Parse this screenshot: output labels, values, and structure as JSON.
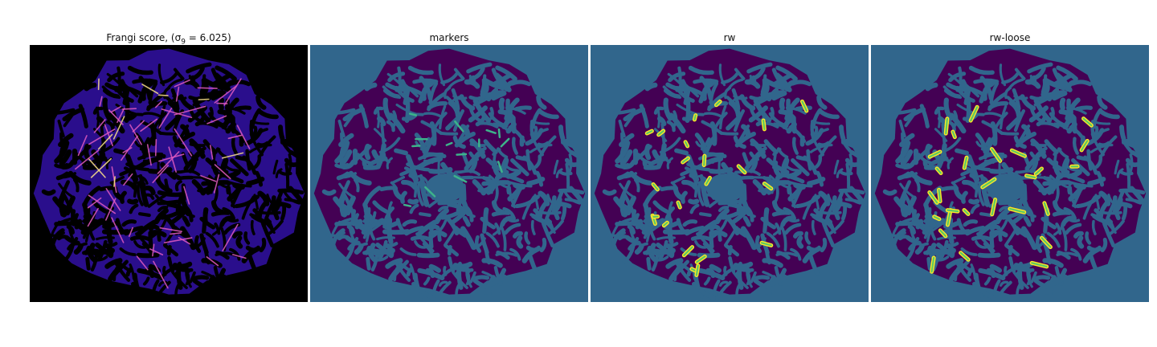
{
  "panels": [
    {
      "id": "frangi",
      "title_prefix": "Frangi score, (",
      "sigma_symbol": "σ",
      "sigma_sub": "9",
      "title_suffix": " = 6.025)"
    },
    {
      "id": "markers",
      "title": "markers"
    },
    {
      "id": "rw",
      "title": "rw"
    },
    {
      "id": "rw-loose",
      "title": "rw-loose"
    }
  ],
  "colors": {
    "frangi_bg": "#000000",
    "frangi_tissue": "#2a0e8c",
    "frangi_ridge": "#e05ac0",
    "frangi_ridge_hot": "#fbe08a",
    "segment_bg": "#31668c",
    "segment_tissue": "#440154",
    "marker_teal": "#3db38a",
    "rw_yellow": "#fde725",
    "rw_green": "#5ec962"
  }
}
